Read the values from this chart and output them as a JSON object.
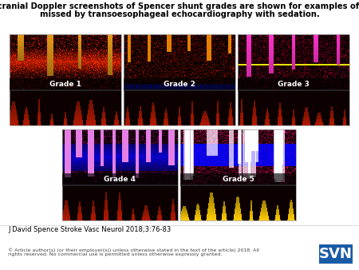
{
  "title_line1": "Transcranial Doppler screenshots of Spencer shunt grades are shown for examples of cases",
  "title_line2": "missed by transoesophageal echocardiography with sedation.",
  "title_fontsize": 7.2,
  "title_fontweight": "bold",
  "citation": "J David Spence Stroke Vasc Neurol 2018;3:76-83",
  "citation_fontsize": 6.0,
  "copyright": "© Article author(s) (or their employer(s)) unless otherwise stated in the text of the article) 2018. All\nrights reserved. No commercial use is permitted unless otherwise expressly granted.",
  "copyright_fontsize": 4.5,
  "svn_text": "SVN",
  "svn_bg": "#1a5ba6",
  "svn_fg": "#ffffff",
  "svn_fontsize": 13,
  "panel_labels": [
    "Grade 1",
    "Grade 2",
    "Grade 3",
    "Grade 4",
    "Grade 5"
  ],
  "label_fontsize": 6.5,
  "bg_color": "#ffffff",
  "grade_label_fg": "#ffffff"
}
